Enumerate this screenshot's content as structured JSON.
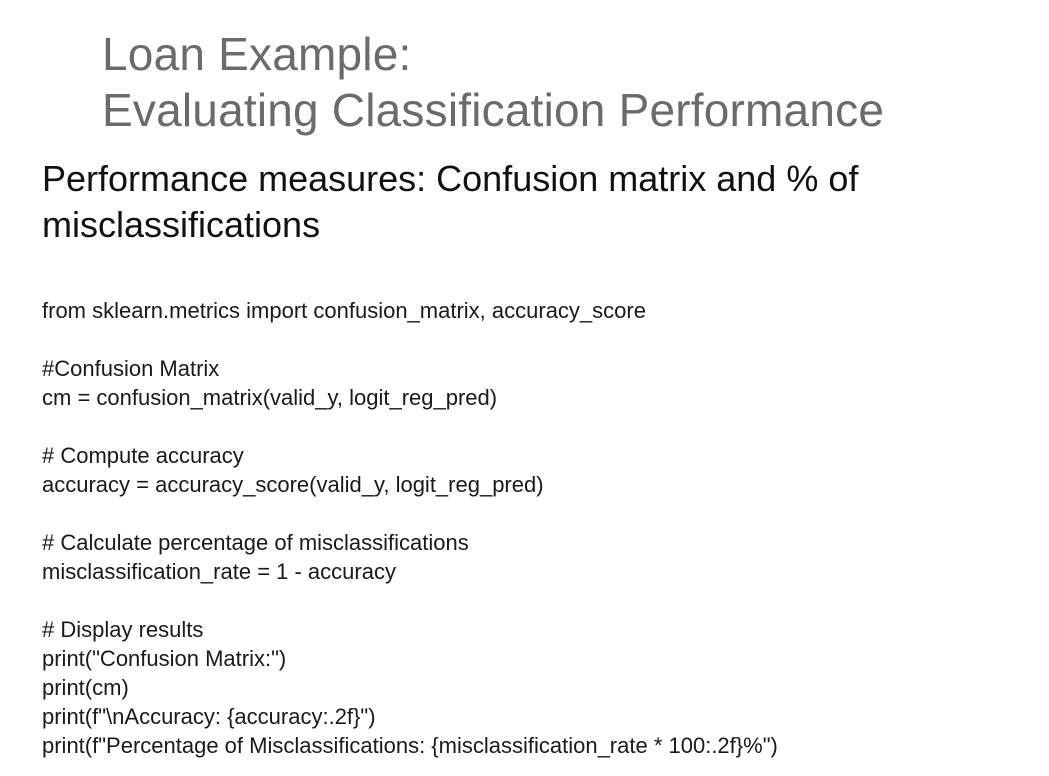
{
  "title": {
    "line1": "Loan Example:",
    "line2": "Evaluating Classification Performance"
  },
  "subtitle": {
    "line1": "Performance measures: Confusion matrix and % of",
    "line2": "misclassifications"
  },
  "code": {
    "lines": [
      "from sklearn.metrics import confusion_matrix, accuracy_score",
      "",
      "#Confusion Matrix",
      "cm = confusion_matrix(valid_y, logit_reg_pred)",
      "",
      "# Compute accuracy",
      "accuracy = accuracy_score(valid_y, logit_reg_pred)",
      "",
      "# Calculate percentage of misclassifications",
      "misclassification_rate = 1 - accuracy",
      "",
      "# Display results",
      "print(\"Confusion Matrix:\")",
      "print(cm)",
      "print(f\"\\nAccuracy: {accuracy:.2f}\")",
      "print(f\"Percentage of Misclassifications: {misclassification_rate * 100:.2f}%\")"
    ]
  }
}
